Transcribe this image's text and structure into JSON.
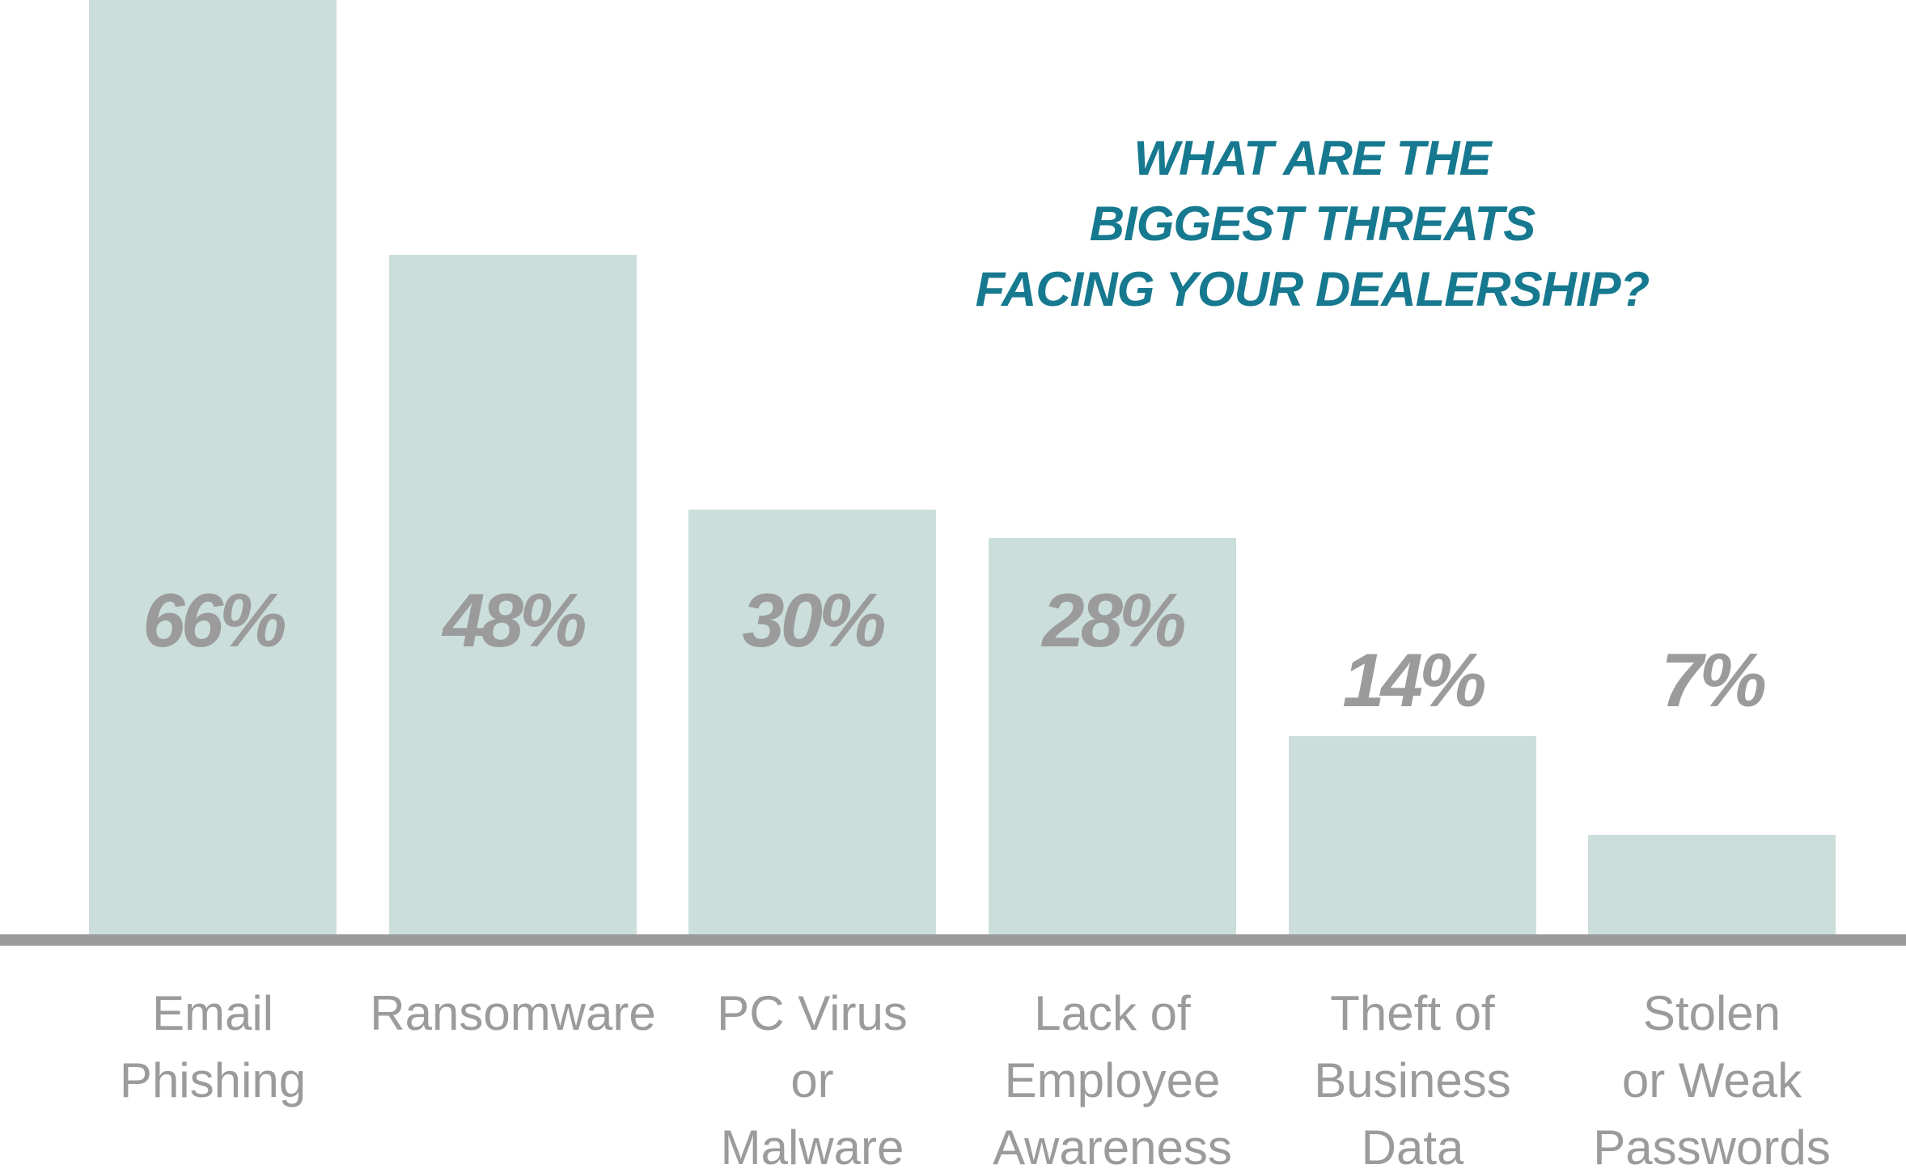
{
  "chart_data": {
    "type": "bar",
    "title": "WHAT ARE THE BIGGEST THREATS FACING YOUR DEALERSHIP?",
    "title_lines": [
      "WHAT ARE THE",
      "BIGGEST THREATS",
      "FACING YOUR DEALERSHIP?"
    ],
    "categories": [
      "Email Phishing",
      "Ransomware",
      "PC Virus or Malware",
      "Lack of Employee Awareness",
      "Theft of Business Data",
      "Stolen or Weak Passwords"
    ],
    "category_lines": [
      [
        "Email",
        "Phishing"
      ],
      [
        "Ransomware"
      ],
      [
        "PC Virus",
        "or",
        "Malware"
      ],
      [
        "Lack of",
        "Employee",
        "Awareness"
      ],
      [
        "Theft of",
        "Business",
        "Data"
      ],
      [
        "Stolen",
        "or Weak",
        "Passwords"
      ]
    ],
    "values": [
      66,
      48,
      30,
      28,
      14,
      7
    ],
    "value_labels": [
      "66%",
      "48%",
      "30%",
      "28%",
      "14%",
      "7%"
    ],
    "value_label_position": [
      "inside",
      "inside",
      "inside",
      "inside",
      "above",
      "above"
    ],
    "unit": "%",
    "ylim": [
      0,
      66
    ],
    "grid": false,
    "legend": false,
    "colors": {
      "bar_fill": "#cbdedb",
      "value_label": "#9b9b9b",
      "category_label": "#9b9b9b",
      "axis_line": "#9a9a9a",
      "title": "#16798f",
      "background": "#ffffff"
    }
  }
}
